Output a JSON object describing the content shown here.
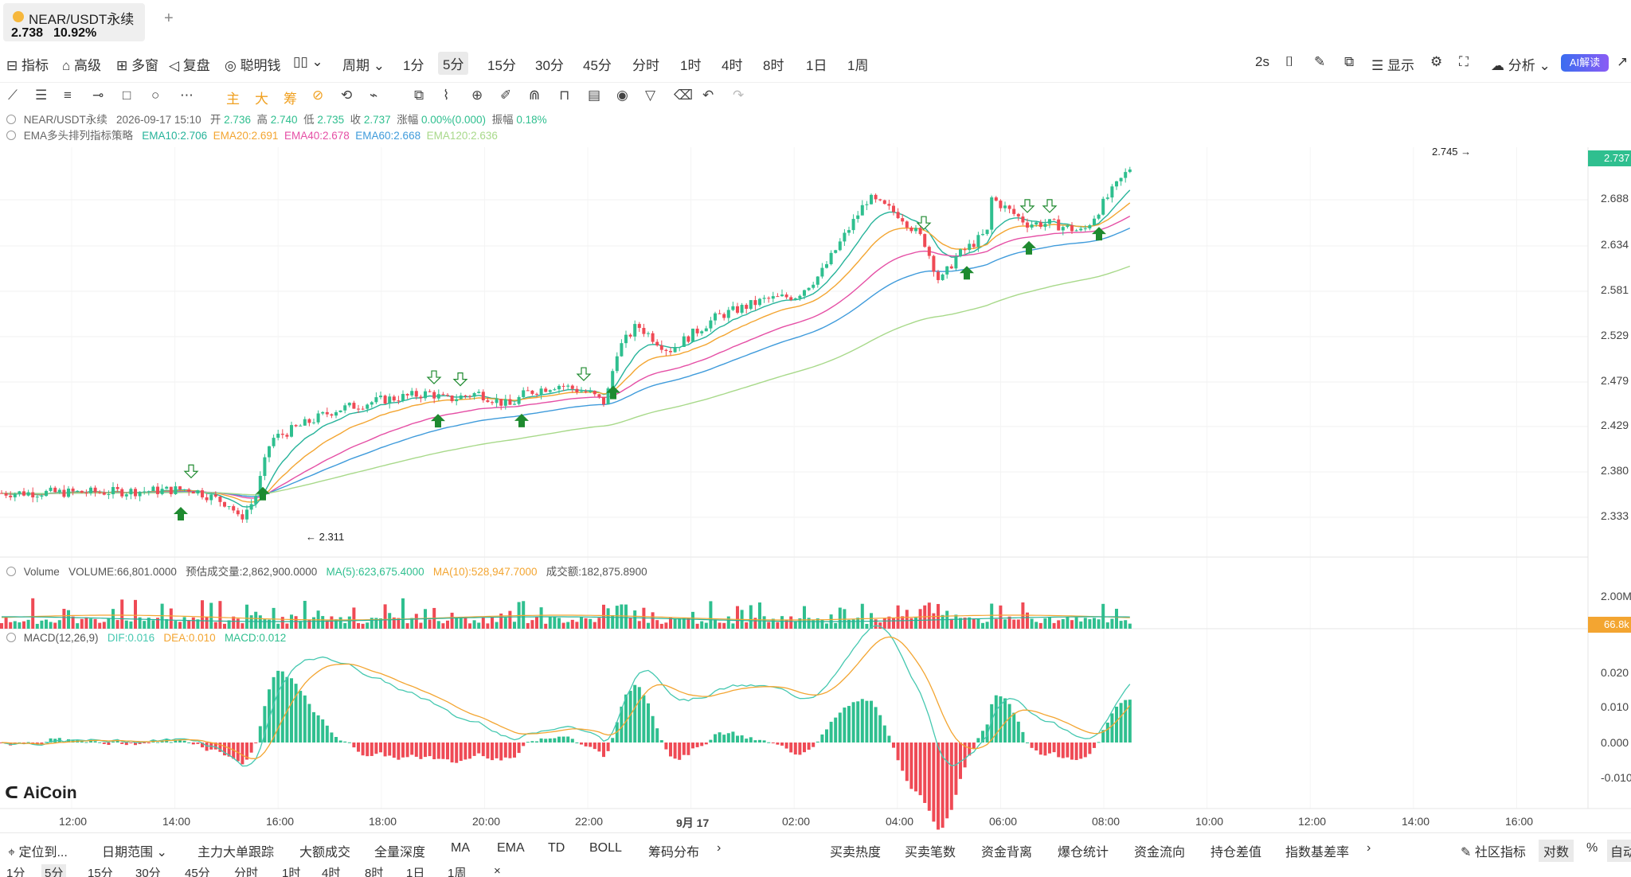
{
  "tab": {
    "symbol": "NEAR/USDT永续",
    "price": "2.738",
    "change": "10.92%",
    "add": "+"
  },
  "toolbar1": {
    "indicators": "指标",
    "advanced": "高级",
    "multi": "多窗",
    "replay": "复盘",
    "smart": "聪明钱",
    "period": "周期",
    "intervals": [
      "1分",
      "5分",
      "15分",
      "30分",
      "45分",
      "分时",
      "1时",
      "4时",
      "8时",
      "1日",
      "1周"
    ],
    "selected_interval": "5分",
    "refresh": "2s",
    "display": "显示",
    "analysis": "分析",
    "ai": "AI解读"
  },
  "toolbar2": {
    "chips": [
      "主",
      "大",
      "筹"
    ]
  },
  "legend": {
    "line1": {
      "symbol": "NEAR/USDT永续",
      "date": "2026-09-17 15:10",
      "open_label": "开",
      "open": "2.736",
      "high_label": "高",
      "high": "2.740",
      "low_label": "低",
      "low": "2.735",
      "close_label": "收",
      "close": "2.737",
      "chg_label": "涨幅",
      "chg": "0.00%(0.000)",
      "amp_label": "振幅",
      "amp": "0.18%"
    },
    "line2": {
      "name": "EMA多头排列指标策略",
      "ema10": "EMA10:2.706",
      "ema20": "EMA20:2.691",
      "ema40": "EMA40:2.678",
      "ema60": "EMA60:2.668",
      "ema120": "EMA120:2.636"
    }
  },
  "volume_legend": {
    "name": "Volume",
    "vol": "VOLUME:66,801.0000",
    "est": "预估成交量:2,862,900.0000",
    "ma5": "MA(5):623,675.4000",
    "ma10": "MA(10):528,947.7000",
    "turnover": "成交额:182,875.8900"
  },
  "macd_legend": {
    "name": "MACD(12,26,9)",
    "dif": "DIF:0.016",
    "dea": "DEA:0.010",
    "macd": "MACD:0.012"
  },
  "colors": {
    "up": "#2fbf8f",
    "down": "#ef4a55",
    "ema10": "#26b39a",
    "ema20": "#f3a531",
    "ema40": "#e54fa5",
    "ema60": "#3f9bdb",
    "ema120": "#a8d98a",
    "dif": "#45c8b0",
    "dea": "#f3a531"
  },
  "price_axis": {
    "labels": [
      "2.688",
      "2.634",
      "2.581",
      "2.529",
      "2.479",
      "2.429",
      "2.380",
      "2.333"
    ],
    "current": "2.737"
  },
  "volume_axis": {
    "labels": [
      "2.00M"
    ],
    "current": "66.8k"
  },
  "macd_axis": {
    "labels": [
      "0.020",
      "0.010",
      "0.000",
      "-0.010"
    ]
  },
  "time_axis": [
    "12:00",
    "14:00",
    "16:00",
    "18:00",
    "20:00",
    "22:00",
    "9月 17",
    "02:00",
    "04:00",
    "06:00",
    "08:00",
    "10:00",
    "12:00",
    "14:00",
    "16:00"
  ],
  "annotations": {
    "high": "2.745 →",
    "low": "← 2.311"
  },
  "brand": "AiCoin",
  "bottom_bar": {
    "left": [
      "定位到...",
      "日期范围"
    ],
    "tools": [
      "主力大单跟踪",
      "大额成交",
      "全量深度",
      "MA",
      "EMA",
      "TD",
      "BOLL",
      "筹码分布"
    ],
    "right": [
      "买卖热度",
      "买卖笔数",
      "资金背离",
      "爆仓统计",
      "资金流向",
      "持仓差值",
      "指数基差率"
    ],
    "far_right": [
      "社区指标",
      "对数",
      "%",
      "自动"
    ]
  },
  "bottom_intervals": [
    "1分",
    "5分",
    "15分",
    "30分",
    "45分",
    "分时",
    "1时",
    "4时",
    "8时",
    "1日",
    "1周"
  ],
  "chart_data": {
    "type": "candlestick",
    "ema_lines_desc": "EMA10, EMA20, EMA40, EMA60, EMA120",
    "price_range": [
      2.3,
      2.76
    ],
    "keypoints": [
      [
        0,
        2.352
      ],
      [
        120,
        2.353
      ],
      [
        200,
        2.355
      ],
      [
        240,
        2.357
      ],
      [
        290,
        2.338
      ],
      [
        300,
        2.32
      ],
      [
        320,
        2.345
      ],
      [
        340,
        2.415
      ],
      [
        420,
        2.45
      ],
      [
        480,
        2.462
      ],
      [
        540,
        2.47
      ],
      [
        560,
        2.462
      ],
      [
        600,
        2.47
      ],
      [
        640,
        2.455
      ],
      [
        660,
        2.47
      ],
      [
        700,
        2.48
      ],
      [
        740,
        2.47
      ],
      [
        760,
        2.458
      ],
      [
        775,
        2.52
      ],
      [
        800,
        2.55
      ],
      [
        840,
        2.52
      ],
      [
        900,
        2.56
      ],
      [
        960,
        2.58
      ],
      [
        1000,
        2.585
      ],
      [
        1030,
        2.61
      ],
      [
        1090,
        2.7
      ],
      [
        1130,
        2.68
      ],
      [
        1160,
        2.65
      ],
      [
        1180,
        2.6
      ],
      [
        1200,
        2.63
      ],
      [
        1240,
        2.66
      ],
      [
        1245,
        2.7
      ],
      [
        1290,
        2.67
      ],
      [
        1320,
        2.67
      ],
      [
        1360,
        2.66
      ],
      [
        1390,
        2.7
      ],
      [
        1420,
        2.737
      ]
    ],
    "buy_signal_x": [
      227,
      330,
      550,
      655,
      770,
      1214,
      1292,
      1380
    ],
    "sell_signal_x": [
      240,
      545,
      578,
      733,
      1160,
      1290,
      1318
    ]
  }
}
